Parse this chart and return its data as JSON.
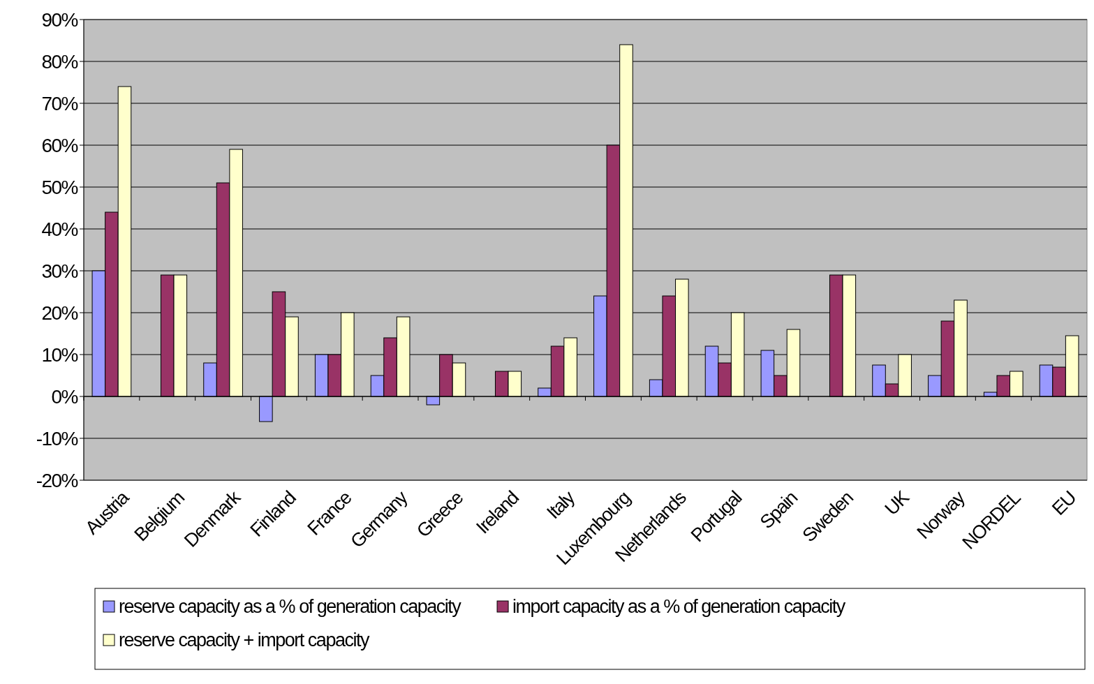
{
  "chart_data": {
    "type": "bar",
    "categories": [
      "Austria",
      "Belgium",
      "Denmark",
      "Finland",
      "France",
      "Germany",
      "Greece",
      "Ireland",
      "Italy",
      "Luxembourg",
      "Netherlands",
      "Portugal",
      "Spain",
      "Sweden",
      "UK",
      "Norway",
      "NORDEL",
      "EU"
    ],
    "series": [
      {
        "name": "reserve capacity as a % of generation capacity",
        "color": "#9999ff",
        "values": [
          30,
          0,
          8,
          -6,
          10,
          5,
          -2,
          0,
          2,
          24,
          4,
          12,
          11,
          0,
          7.5,
          5,
          1,
          7.5
        ]
      },
      {
        "name": "import capacity as a % of generation capacity",
        "color": "#993366",
        "values": [
          44,
          29,
          51,
          25,
          10,
          14,
          10,
          6,
          12,
          60,
          24,
          8,
          5,
          29,
          3,
          18,
          5,
          7
        ]
      },
      {
        "name": "reserve capacity + import capacity",
        "color": "#ffffcc",
        "values": [
          74,
          29,
          59,
          19,
          20,
          19,
          8,
          6,
          14,
          84,
          28,
          20,
          16,
          29,
          10,
          23,
          6,
          14.5
        ]
      }
    ],
    "ylim": [
      -20,
      90
    ],
    "yticks": [
      {
        "value": -20,
        "label": "-20%"
      },
      {
        "value": -10,
        "label": "-10%"
      },
      {
        "value": 0,
        "label": "0%"
      },
      {
        "value": 10,
        "label": "10%"
      },
      {
        "value": 20,
        "label": "20%"
      },
      {
        "value": 30,
        "label": "30%"
      },
      {
        "value": 40,
        "label": "40%"
      },
      {
        "value": 50,
        "label": "50%"
      },
      {
        "value": 60,
        "label": "60%"
      },
      {
        "value": 70,
        "label": "70%"
      },
      {
        "value": 80,
        "label": "80%"
      },
      {
        "value": 90,
        "label": "90%"
      }
    ],
    "grid": "y",
    "legend": "bottom"
  }
}
